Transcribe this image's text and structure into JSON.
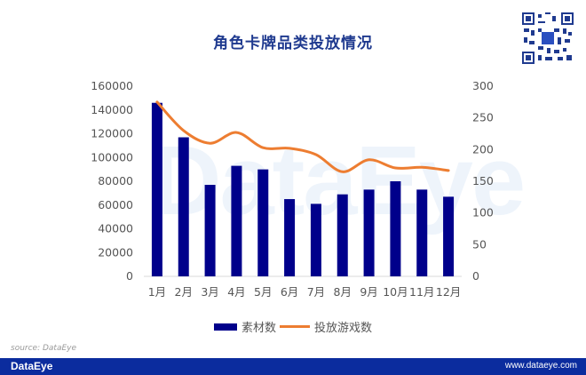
{
  "title": "角色卡牌品类投放情况",
  "watermark": "DataEye",
  "legend": {
    "bar_label": "素材数",
    "line_label": "投放游戏数"
  },
  "source": "source: DataEye",
  "footer": {
    "brand": "DataEye",
    "site": "www.dataeye.com"
  },
  "colors": {
    "bar": "#00008b",
    "line": "#ed7d31",
    "title": "#1f3a8f",
    "footer": "#0b2c9e"
  },
  "chart_data": {
    "type": "bar+line",
    "title": "角色卡牌品类投放情况",
    "categories": [
      "1月",
      "2月",
      "3月",
      "4月",
      "5月",
      "6月",
      "7月",
      "8月",
      "9月",
      "10月",
      "11月",
      "12月"
    ],
    "series": [
      {
        "name": "素材数",
        "type": "bar",
        "axis": "left",
        "values": [
          146000,
          117000,
          77000,
          93000,
          90000,
          65000,
          61000,
          69000,
          73000,
          80000,
          73000,
          67000
        ]
      },
      {
        "name": "投放游戏数",
        "type": "line",
        "axis": "right",
        "values": [
          275,
          230,
          210,
          227,
          203,
          202,
          192,
          165,
          184,
          171,
          172,
          167
        ]
      }
    ],
    "y_left": {
      "ticks": [
        "0",
        "20000",
        "40000",
        "60000",
        "80000",
        "100000",
        "120000",
        "140000",
        "160000"
      ],
      "ylim": [
        0,
        160000
      ]
    },
    "y_right": {
      "ticks": [
        "0",
        "50",
        "100",
        "150",
        "200",
        "250",
        "300"
      ],
      "ylim": [
        0,
        300
      ]
    },
    "legend_position": "bottom",
    "grid": false
  }
}
